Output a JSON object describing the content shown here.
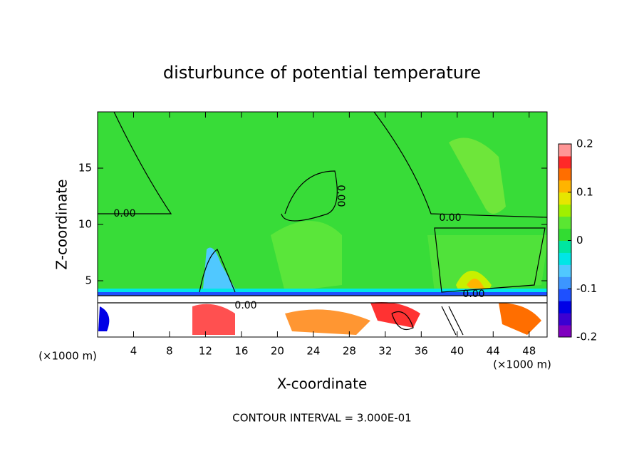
{
  "chart_data": {
    "type": "contour",
    "title": "disturbunce of potential temperature",
    "xlabel": "X-coordinate",
    "ylabel": "Z-coordinate",
    "x_unit_label": "(×1000 m)",
    "y_unit_label": "(×1000 m)",
    "xlim": [
      0,
      50
    ],
    "ylim": [
      0,
      20
    ],
    "xticks": [
      4,
      8,
      12,
      16,
      20,
      24,
      28,
      32,
      36,
      40,
      44,
      48
    ],
    "yticks": [
      5,
      10,
      15
    ],
    "colorbar": {
      "lim": [
        -0.2,
        0.2
      ],
      "ticks": [
        0.2,
        0.1,
        0,
        -0.1,
        -0.2
      ],
      "colors": [
        "#7f00bf",
        "#3c00d2",
        "#0000e6",
        "#1e50ff",
        "#3c96ff",
        "#50c8ff",
        "#00e6e6",
        "#00e6a0",
        "#32dc32",
        "#5ae632",
        "#a0f000",
        "#e6e600",
        "#ffb400",
        "#ff6e00",
        "#ff2828",
        "#ff9696"
      ]
    },
    "contour_labels": [
      "0.00",
      "0.00",
      "0.00",
      "0.00",
      "0.00"
    ],
    "annotation": "CONTOUR INTERVAL = 3.000E-01"
  }
}
